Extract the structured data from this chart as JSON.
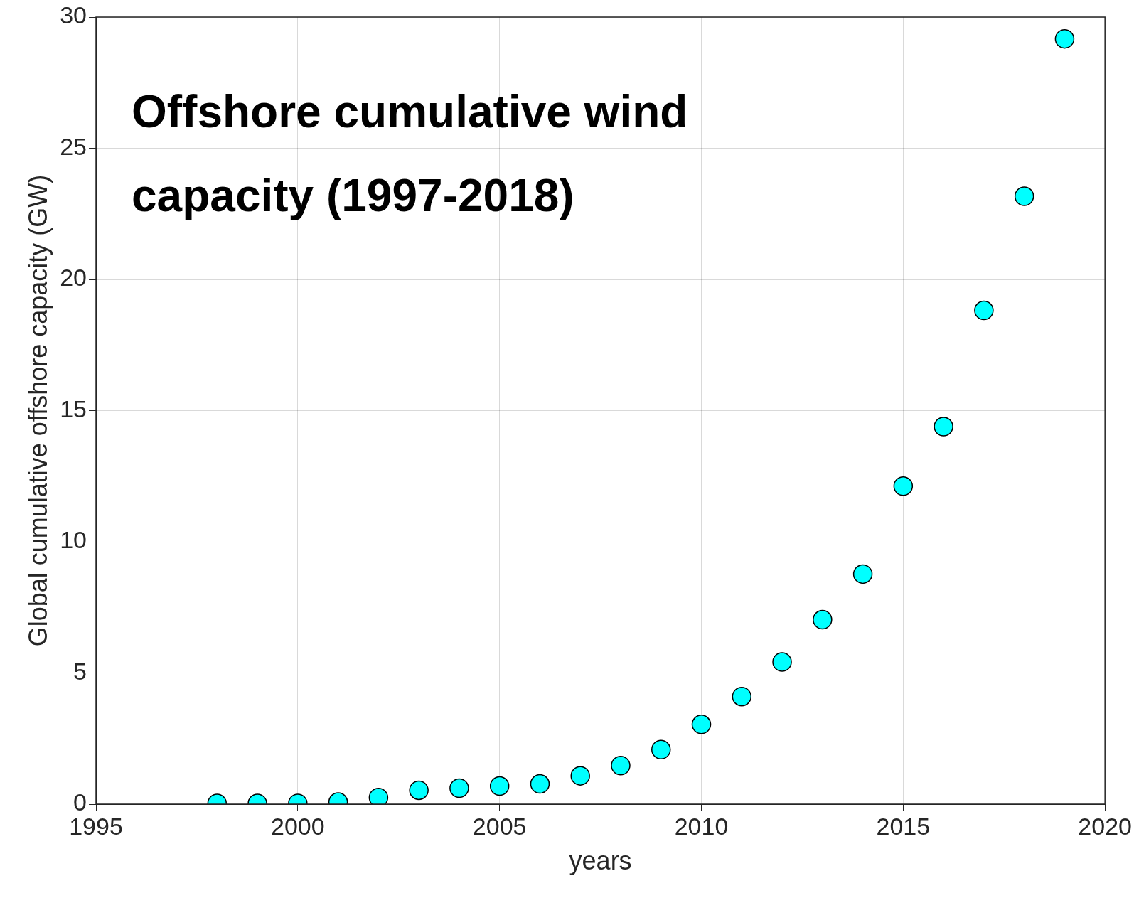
{
  "chart_data": {
    "type": "scatter",
    "title": "Offshore cumulative wind capacity (1997-2018)",
    "xlabel": "years",
    "ylabel": "Global cumulative offshore capacity (GW)",
    "x": [
      1998,
      1999,
      2000,
      2001,
      2002,
      2003,
      2004,
      2005,
      2006,
      2007,
      2008,
      2009,
      2010,
      2011,
      2012,
      2013,
      2014,
      2015,
      2016,
      2017,
      2018,
      2019
    ],
    "values": [
      0.03,
      0.03,
      0.03,
      0.08,
      0.25,
      0.53,
      0.61,
      0.69,
      0.77,
      1.08,
      1.47,
      2.08,
      3.04,
      4.1,
      5.42,
      7.03,
      8.77,
      12.12,
      14.39,
      18.82,
      23.17,
      29.17
    ],
    "color": "#00ffff",
    "marker": "circle",
    "xlim": [
      1995,
      2020
    ],
    "xticks": [
      1995,
      2000,
      2005,
      2010,
      2015,
      2020
    ],
    "ylim": [
      0,
      30
    ],
    "yticks": [
      0,
      5,
      10,
      15,
      20,
      25,
      30
    ],
    "grid": true
  }
}
